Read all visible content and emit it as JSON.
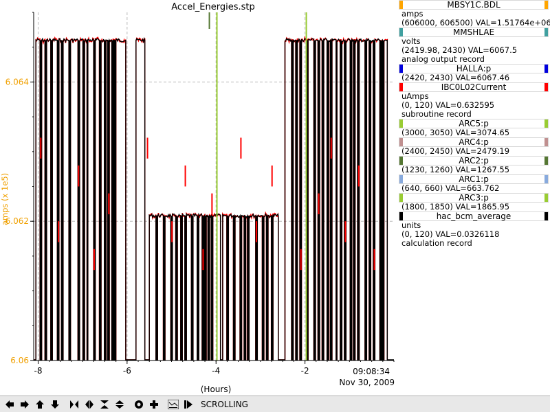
{
  "chart_data": {
    "type": "line",
    "title": "Accel_Energies.stp",
    "xlabel": "(Hours)",
    "ylabel": "amps (x 1e5)",
    "x_range": [
      -8.1,
      0.0
    ],
    "y_range": [
      6.06,
      6.065
    ],
    "x_ticks": [
      -8,
      -6,
      -4,
      -2
    ],
    "x_tick_labels": [
      "-8",
      "-6",
      "-4",
      "-2"
    ],
    "y_ticks": [
      6.06,
      6.062,
      6.064
    ],
    "y_tick_labels": [
      "6.06",
      "6.062",
      "6.064"
    ],
    "time_label": "09:08:34",
    "date_label": "Nov 30, 2009",
    "grid": true,
    "axis_color": "#f0a000",
    "series": [
      {
        "name": "MBSY1C.BDL",
        "color": "#000000",
        "segments": [
          {
            "x": [
              -8.05,
              -6.03
            ],
            "y": 6.0646
          },
          {
            "x": [
              -5.8,
              -5.6
            ],
            "y": 6.0646
          },
          {
            "x": [
              -5.5,
              -3.9
            ],
            "y": 6.06208
          },
          {
            "x": [
              -3.85,
              -2.6
            ],
            "y": 6.06208
          },
          {
            "x": [
              -2.45,
              -0.15
            ],
            "y": 6.0646
          }
        ],
        "dropouts": [
          -7.95,
          -7.83,
          -7.7,
          -7.55,
          -7.47,
          -7.3,
          -7.1,
          -6.98,
          -6.9,
          -6.75,
          -6.62,
          -6.5,
          -6.42,
          -6.33,
          -6.28,
          -5.55,
          -5.35,
          -5.18,
          -5.0,
          -4.9,
          -4.78,
          -4.7,
          -4.55,
          -4.42,
          -4.3,
          -4.25,
          -4.18,
          -4.1,
          -3.75,
          -3.6,
          -3.45,
          -3.35,
          -3.28,
          -3.1,
          -2.95,
          -2.85,
          -2.75,
          -2.3,
          -2.2,
          -2.1,
          -1.95,
          -1.8,
          -1.7,
          -1.6,
          -1.5,
          -1.42,
          -1.3,
          -1.2,
          -1.1,
          -0.98,
          -0.9,
          -0.8,
          -0.65,
          -0.55,
          -0.45,
          -0.3,
          -0.25
        ]
      },
      {
        "name": "IBC0L02Current",
        "color": "#ff0000"
      }
    ],
    "markers": [
      {
        "name": "ARC5:p",
        "color": "#99cc33",
        "x": -3.98
      },
      {
        "name": "ARC3:p",
        "color": "#99cc33",
        "x": -1.97
      },
      {
        "name": "ARC2:p",
        "color": "#557733",
        "x": -4.15
      }
    ]
  },
  "legend": [
    {
      "label": "MBSY1C.BDL",
      "color": "#ffa500",
      "lines": [
        "amps",
        "(606000, 606500)  VAL=1.51764e+06"
      ]
    },
    {
      "label": "MMSHLAE",
      "color": "#40a0a0",
      "lines": [
        "volts",
        "(2419.98, 2430) VAL=6067.5",
        "analog output record"
      ]
    },
    {
      "label": "HALLA:p",
      "color": "#0000dd",
      "lines": [
        "(2420, 2430) VAL=6067.46"
      ]
    },
    {
      "label": "IBC0L02Current",
      "color": "#ff0000",
      "lines": [
        "uAmps",
        "(0, 120) VAL=0.632595",
        "subroutine record"
      ]
    },
    {
      "label": "ARC5:p",
      "color": "#99cc33",
      "lines": [
        "(3000, 3050) VAL=3074.65"
      ]
    },
    {
      "label": "ARC4:p",
      "color": "#c09090",
      "lines": [
        "(2400, 2450) VAL=2479.19"
      ]
    },
    {
      "label": "ARC2:p",
      "color": "#557733",
      "lines": [
        "(1230, 1260) VAL=1267.55"
      ]
    },
    {
      "label": "ARC1:p",
      "color": "#88aadd",
      "lines": [
        "(640, 660) VAL=663.762"
      ]
    },
    {
      "label": "ARC3:p",
      "color": "#99cc33",
      "lines": [
        "(1800, 1850) VAL=1865.95"
      ]
    },
    {
      "label": "hac_bcm_average",
      "color": "#000000",
      "lines": [
        "units",
        "(0, 120) VAL=0.0326118",
        "calculation record"
      ]
    }
  ],
  "toolbar": {
    "buttons": [
      "pan-left",
      "pan-right",
      "pan-up",
      "pan-down",
      "zoom-in-x",
      "zoom-out-x",
      "zoom-in-y",
      "zoom-out-y",
      "config",
      "add",
      "autoscale",
      "export"
    ],
    "status": "SCROLLING"
  }
}
